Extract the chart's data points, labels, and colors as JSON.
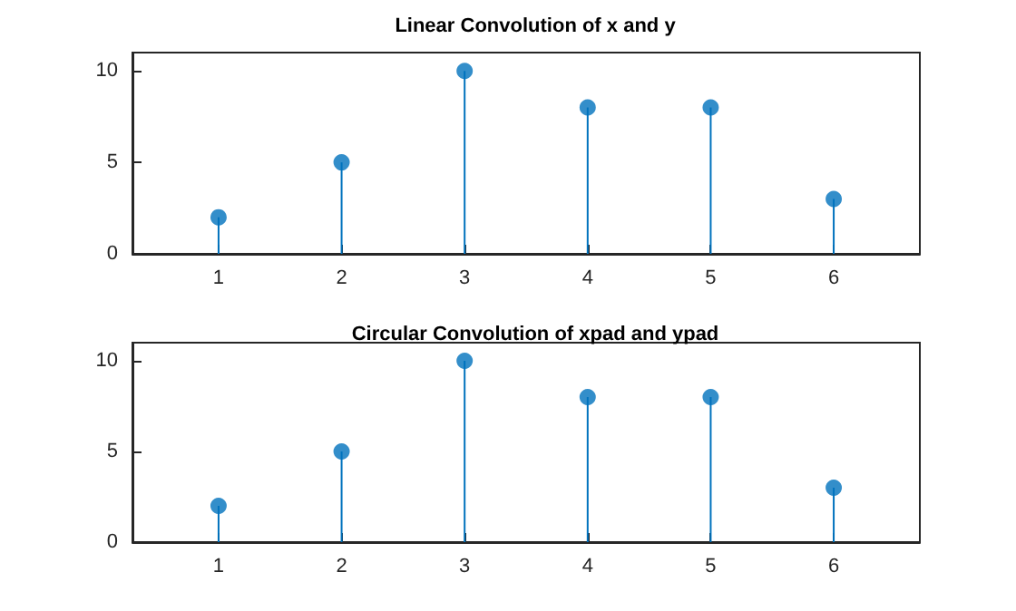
{
  "chart_data": [
    {
      "type": "lollipop",
      "title": "Linear Convolution of x and y",
      "x": [
        1,
        2,
        3,
        4,
        5,
        6
      ],
      "values": [
        2,
        5,
        10,
        8,
        8,
        3
      ],
      "color": "#0072bd",
      "xlim": [
        0.3,
        6.7
      ],
      "xticks": [
        1,
        2,
        3,
        4,
        5,
        6
      ],
      "ylim": [
        0,
        11
      ],
      "yticks": [
        0,
        5,
        10
      ],
      "marker": "circle",
      "grid": false
    },
    {
      "type": "lollipop",
      "title": "Circular Convolution of xpad and ypad",
      "x": [
        1,
        2,
        3,
        4,
        5,
        6
      ],
      "values": [
        2,
        5,
        10,
        8,
        8,
        3
      ],
      "color": "#0072bd",
      "xlim": [
        0.3,
        6.7
      ],
      "xticks": [
        1,
        2,
        3,
        4,
        5,
        6
      ],
      "ylim": [
        0,
        11
      ],
      "yticks": [
        0,
        5,
        10
      ],
      "marker": "circle",
      "grid": false
    }
  ]
}
